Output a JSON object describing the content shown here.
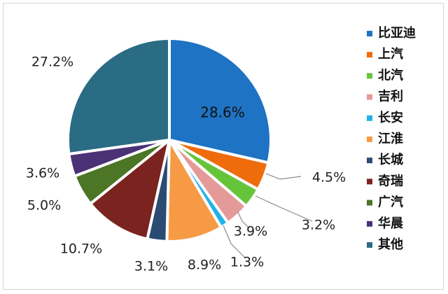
{
  "chart_data": {
    "type": "pie",
    "title": "",
    "slices": [
      {
        "label": "比亚迪",
        "value": 28.6,
        "display": "28.6%",
        "color": "#1f73c4"
      },
      {
        "label": "上汽",
        "value": 4.5,
        "display": "4.5%",
        "color": "#ef6c0c"
      },
      {
        "label": "北汽",
        "value": 3.2,
        "display": "3.2%",
        "color": "#66c43a"
      },
      {
        "label": "吉利",
        "value": 3.9,
        "display": "3.9%",
        "color": "#e49a98"
      },
      {
        "label": "长安",
        "value": 1.3,
        "display": "1.3%",
        "color": "#1fb2ea"
      },
      {
        "label": "江淮",
        "value": 8.9,
        "display": "8.9%",
        "color": "#f79a45"
      },
      {
        "label": "长城",
        "value": 3.1,
        "display": "3.1%",
        "color": "#2b4b73"
      },
      {
        "label": "奇瑞",
        "value": 10.7,
        "display": "10.7%",
        "color": "#7a231f"
      },
      {
        "label": "广汽",
        "value": 5.0,
        "display": "5.0%",
        "color": "#4c7526"
      },
      {
        "label": "华晨",
        "value": 3.6,
        "display": "3.6%",
        "color": "#4b3175"
      },
      {
        "label": "其他",
        "value": 27.2,
        "display": "27.2%",
        "color": "#2a6c83"
      }
    ],
    "legend_position": "right"
  }
}
